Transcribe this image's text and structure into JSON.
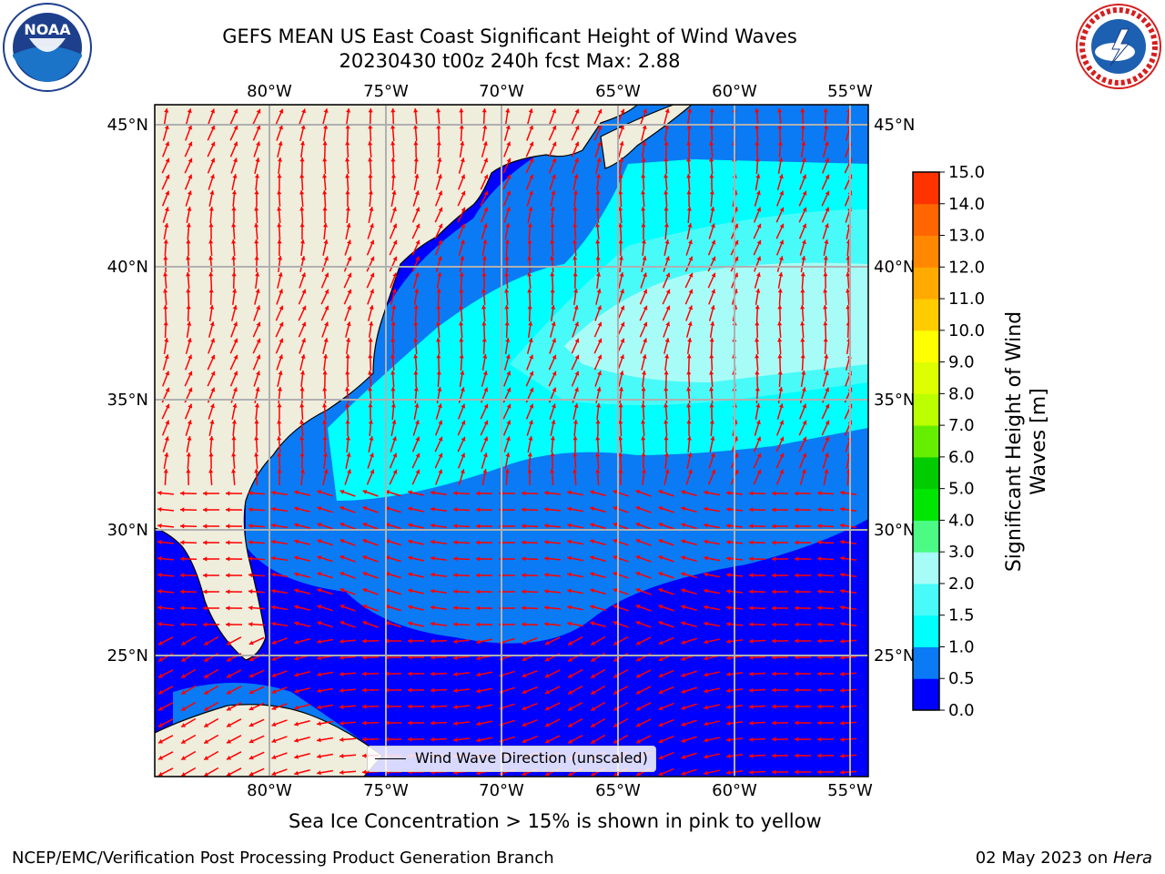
{
  "title": {
    "line1": "GEFS MEAN US East Coast Significant Height of Wind Waves",
    "line2": "20230430 t00z 240h fcst   Max: 2.88"
  },
  "map": {
    "lon_ticks": [
      "80°W",
      "75°W",
      "70°W",
      "65°W",
      "60°W",
      "55°W"
    ],
    "lat_ticks": [
      "45°N",
      "40°N",
      "35°N",
      "30°N",
      "25°N"
    ],
    "colors": {
      "land": "#efeddc",
      "sea_0_0p5": "#0000ff",
      "sea_0p5_1": "#0a7bf4",
      "sea_1_1p5": "#00ffff",
      "sea_1p5_2": "#48fbf8",
      "sea_2_3": "#a8fcf7",
      "arrows": "#ff0000",
      "grid": "#b0b0b0"
    }
  },
  "legend": {
    "label": "Wind Wave Direction (unscaled)"
  },
  "colorbar": {
    "title": "Significant Height of Wind Waves [m]",
    "labels": [
      "15.0",
      "14.0",
      "13.0",
      "12.0",
      "11.0",
      "10.0",
      "9.0",
      "8.0",
      "7.0",
      "6.0",
      "5.0",
      "4.0",
      "3.0",
      "2.0",
      "1.5",
      "1.0",
      "0.5",
      "0.0"
    ],
    "colors": [
      "#0000ff",
      "#0a7bf4",
      "#00ffff",
      "#48fbf8",
      "#a8fcf7",
      "#4cfb84",
      "#00e600",
      "#00cc00",
      "#66ee00",
      "#bbff00",
      "#ddff00",
      "#ffff00",
      "#ffcc00",
      "#ffaa00",
      "#ff8800",
      "#ff6600",
      "#ff3300"
    ]
  },
  "captions": {
    "sea_ice": "Sea Ice Concentration > 15% is shown in pink to yellow",
    "footer_left": "NCEP/EMC/Verification Post Processing Product Generation Branch",
    "footer_right_date": "02 May 2023 on ",
    "footer_right_machine": "Hera"
  },
  "logos": {
    "noaa_text": "NOAA",
    "nws_text": "NATIONAL WEATHER SERVICE"
  }
}
